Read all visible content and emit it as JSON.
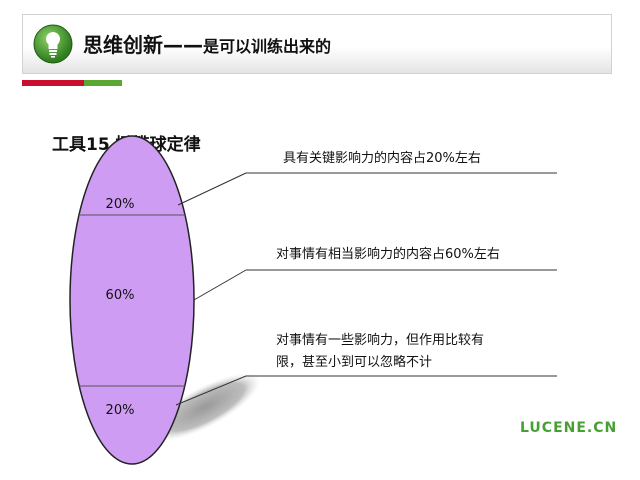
{
  "header": {
    "title_main": "思维创新——",
    "title_sub": "是可以训练出来的"
  },
  "tool_title": "工具15  橄榄球定律",
  "segments": [
    {
      "label": "20%",
      "description": "具有关键影响力的内容占20%左右"
    },
    {
      "label": "60%",
      "description": "对事情有相当影响力的内容占60%左右"
    },
    {
      "label": "20%",
      "description_lines": [
        "对事情有一些影响力，但作用比较有",
        "限，甚至小到可以忽略不计"
      ]
    }
  ],
  "watermark": "LUCENE.CN",
  "colors": {
    "ellipse_fill": "#cf9cf3",
    "accent_red": "#c8102e",
    "accent_green": "#5aa832",
    "watermark": "#46a034"
  },
  "icons": {
    "logo": "lightbulb-icon"
  }
}
